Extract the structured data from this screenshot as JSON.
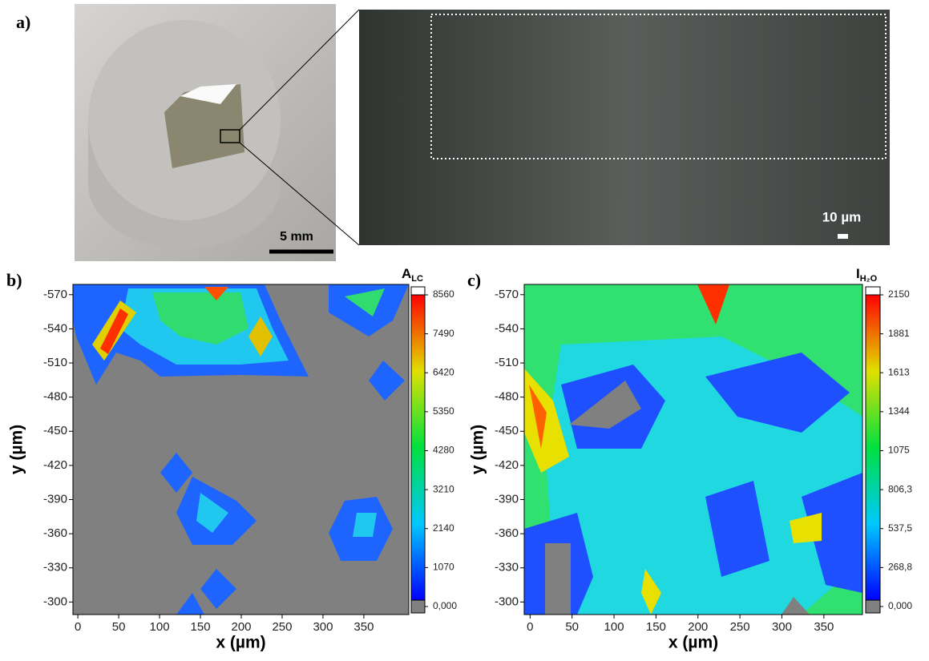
{
  "panel_a": {
    "label": "a)",
    "scale_bar_photo": "5 mm",
    "scale_bar_micrograph": "10 µm"
  },
  "chart_data": [
    {
      "type": "contour",
      "panel_label": "b)",
      "xlabel": "x (µm)",
      "ylabel": "y (µm)",
      "colorbar_title": {
        "main": "A",
        "sub": "LC"
      },
      "xlim": [
        -6,
        405
      ],
      "xticks": [
        0,
        50,
        100,
        150,
        200,
        250,
        300,
        350
      ],
      "ylim": [
        -289,
        -579
      ],
      "yticks": [
        -300,
        -330,
        -360,
        -390,
        -420,
        -450,
        -480,
        -510,
        -540,
        -570
      ],
      "clim": [
        0,
        8560
      ],
      "cticks": [
        {
          "value": 0,
          "label": "0,000"
        },
        1070,
        2140,
        3210,
        4280,
        5350,
        6420,
        7490,
        8560
      ]
    },
    {
      "type": "contour",
      "panel_label": "c)",
      "xlabel": "x (µm)",
      "ylabel": "y (µm)",
      "colorbar_title": {
        "main": "I",
        "sub": "H₂O"
      },
      "xlim": [
        -7,
        396
      ],
      "xticks": [
        0,
        50,
        100,
        150,
        200,
        250,
        300,
        350
      ],
      "ylim": [
        -289,
        -579
      ],
      "yticks": [
        -300,
        -330,
        -360,
        -390,
        -420,
        -450,
        -480,
        -510,
        -540,
        -570
      ],
      "clim": [
        0,
        2150
      ],
      "cticks": [
        {
          "value": 0,
          "label": "0,000"
        },
        {
          "value": 268.8,
          "label": "268,8"
        },
        {
          "value": 537.5,
          "label": "537,5"
        },
        {
          "value": 806.3,
          "label": "806,3"
        },
        1075,
        1344,
        1613,
        1881,
        2150
      ]
    }
  ]
}
